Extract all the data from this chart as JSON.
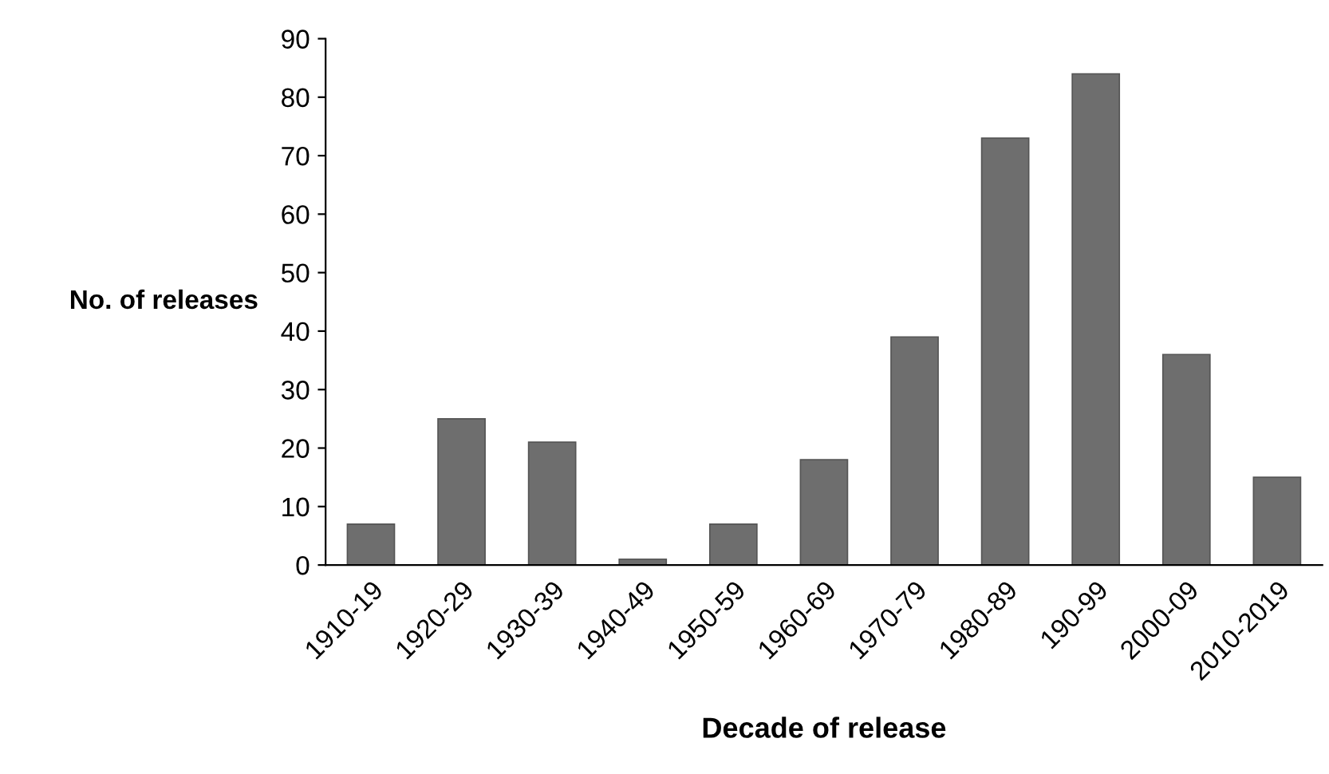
{
  "chart_data": {
    "type": "bar",
    "xlabel": "Decade of release",
    "ylabel": "No. of releases",
    "categories": [
      "1910-19",
      "1920-29",
      "1930-39",
      "1940-49",
      "1950-59",
      "1960-69",
      "1970-79",
      "1980-89",
      "190-99",
      "2000-09",
      "2010-2019"
    ],
    "values": [
      7,
      25,
      21,
      1,
      7,
      18,
      39,
      73,
      84,
      36,
      15
    ],
    "color": "#6e6e6e",
    "ylim": [
      0,
      90
    ],
    "yticks": [
      0,
      10,
      20,
      30,
      40,
      50,
      60,
      70,
      80,
      90
    ],
    "grid": false,
    "legend": false
  }
}
